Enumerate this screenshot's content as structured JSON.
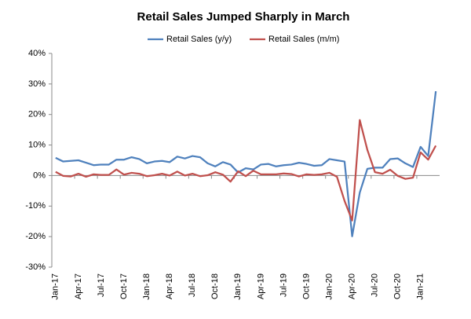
{
  "chart_data": {
    "type": "line",
    "title": "Retail Sales Jumped Sharply  in March",
    "categories": [
      "Jan-17",
      null,
      null,
      "Apr-17",
      null,
      null,
      "Jul-17",
      null,
      null,
      "Oct-17",
      null,
      null,
      "Jan-18",
      null,
      null,
      "Apr-18",
      null,
      null,
      "Jul-18",
      null,
      null,
      "Oct-18",
      null,
      null,
      "Jan-19",
      null,
      null,
      "Apr-19",
      null,
      null,
      "Jul-19",
      null,
      null,
      "Oct-19",
      null,
      null,
      "Jan-20",
      null,
      null,
      "Apr-20",
      null,
      null,
      "Jul-20",
      null,
      null,
      "Oct-20",
      null,
      null,
      "Jan-21",
      null,
      null
    ],
    "series": [
      {
        "name": "Retail Sales (y/y)",
        "color": "#4f81bd",
        "values": [
          5.8,
          4.6,
          4.8,
          5.0,
          4.2,
          3.4,
          3.6,
          3.6,
          5.2,
          5.2,
          6.0,
          5.4,
          4.0,
          4.6,
          4.8,
          4.4,
          6.2,
          5.6,
          6.4,
          6.0,
          4.0,
          3.0,
          4.4,
          3.6,
          1.0,
          2.4,
          2.0,
          3.6,
          3.8,
          3.0,
          3.4,
          3.6,
          4.2,
          3.8,
          3.2,
          3.4,
          5.4,
          5.0,
          4.6,
          -19.9,
          -5.6,
          2.2,
          2.6,
          2.6,
          5.4,
          5.6,
          4.0,
          2.8,
          9.4,
          6.4,
          27.6
        ]
      },
      {
        "name": "Retail Sales (m/m)",
        "color": "#c0504d",
        "values": [
          1.2,
          -0.1,
          -0.3,
          0.6,
          -0.4,
          0.4,
          0.2,
          0.2,
          2.0,
          0.3,
          0.9,
          0.6,
          -0.2,
          0.1,
          0.6,
          0.0,
          1.3,
          0.0,
          0.6,
          -0.2,
          0.1,
          1.1,
          0.3,
          -2.0,
          1.4,
          -0.2,
          1.6,
          0.4,
          0.4,
          0.4,
          0.7,
          0.5,
          -0.3,
          0.4,
          0.2,
          0.4,
          0.9,
          -0.4,
          -8.3,
          -14.7,
          18.2,
          8.4,
          1.1,
          0.6,
          1.9,
          -0.1,
          -1.1,
          -0.7,
          7.6,
          5.2,
          9.8
        ]
      }
    ],
    "ylim": [
      -30,
      40
    ],
    "yticks": [
      {
        "value": -30,
        "label": "-30%"
      },
      {
        "value": -20,
        "label": "-20%"
      },
      {
        "value": -10,
        "label": "-10%"
      },
      {
        "value": 0,
        "label": "0%"
      },
      {
        "value": 10,
        "label": "10%"
      },
      {
        "value": 20,
        "label": "20%"
      },
      {
        "value": 30,
        "label": "30%"
      },
      {
        "value": 40,
        "label": "40%"
      }
    ],
    "grid": false,
    "legend": "top"
  }
}
